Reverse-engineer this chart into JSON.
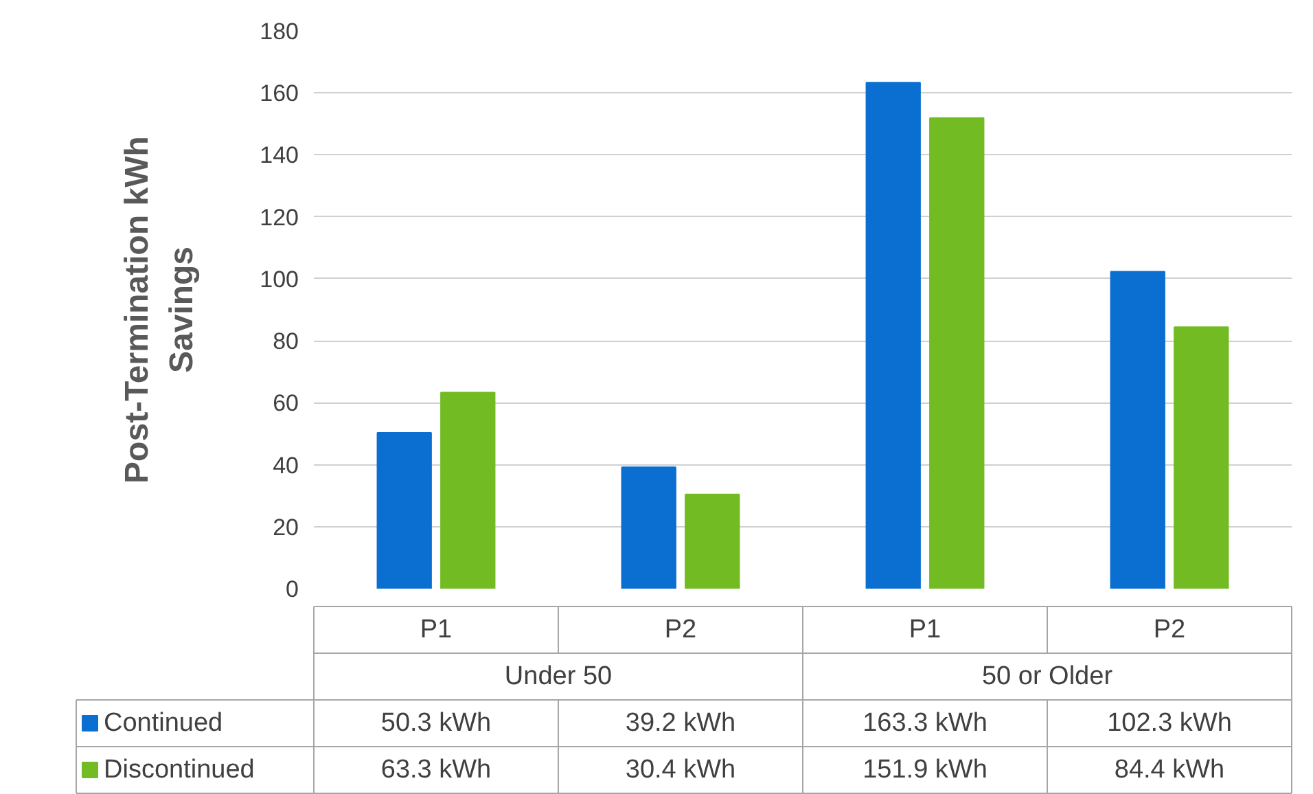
{
  "chart_data": {
    "type": "bar",
    "ylabel": "Post-Termination kWh\nSavings",
    "categories": [
      "P1",
      "P2",
      "P1",
      "P2"
    ],
    "annotations": [
      "Under 50",
      "50 or Older"
    ],
    "series": [
      {
        "name": "Continued",
        "color": "#0a6fd0",
        "values": [
          50.3,
          39.2,
          163.3,
          102.3
        ],
        "value_labels": [
          "50.3 kWh",
          "39.2 kWh",
          "163.3 kWh",
          "102.3 kWh"
        ]
      },
      {
        "name": "Discontinued",
        "color": "#72bb22",
        "values": [
          63.3,
          30.4,
          151.9,
          84.4
        ],
        "value_labels": [
          "63.3 kWh",
          "30.4 kWh",
          "151.9 kWh",
          "84.4 kWh"
        ]
      }
    ],
    "ylim": [
      0,
      180
    ],
    "yticks": [
      0,
      20,
      40,
      60,
      80,
      100,
      120,
      140,
      160,
      180
    ],
    "grid": "y",
    "legend": "bottom"
  }
}
